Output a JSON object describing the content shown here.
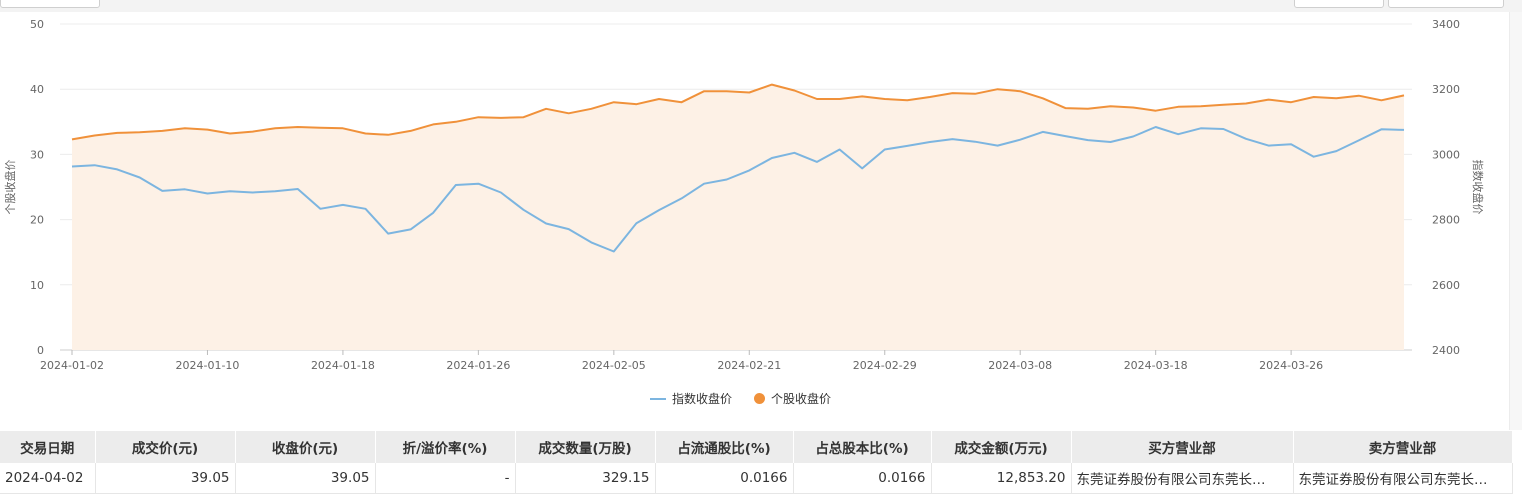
{
  "chart_data": {
    "type": "line",
    "x": [
      "2024-01-02",
      "2024-01-03",
      "2024-01-04",
      "2024-01-05",
      "2024-01-08",
      "2024-01-09",
      "2024-01-10",
      "2024-01-11",
      "2024-01-12",
      "2024-01-15",
      "2024-01-16",
      "2024-01-17",
      "2024-01-18",
      "2024-01-19",
      "2024-01-22",
      "2024-01-23",
      "2024-01-24",
      "2024-01-25",
      "2024-01-26",
      "2024-01-29",
      "2024-01-30",
      "2024-01-31",
      "2024-02-01",
      "2024-02-02",
      "2024-02-05",
      "2024-02-06",
      "2024-02-07",
      "2024-02-08",
      "2024-02-19",
      "2024-02-20",
      "2024-02-21",
      "2024-02-22",
      "2024-02-23",
      "2024-02-26",
      "2024-02-27",
      "2024-02-28",
      "2024-02-29",
      "2024-03-01",
      "2024-03-04",
      "2024-03-05",
      "2024-03-06",
      "2024-03-07",
      "2024-03-08",
      "2024-03-11",
      "2024-03-12",
      "2024-03-13",
      "2024-03-14",
      "2024-03-15",
      "2024-03-18",
      "2024-03-19",
      "2024-03-20",
      "2024-03-21",
      "2024-03-22",
      "2024-03-25",
      "2024-03-26",
      "2024-03-27",
      "2024-03-28",
      "2024-03-29",
      "2024-04-01",
      "2024-04-02"
    ],
    "x_ticks": [
      "2024-01-02",
      "2024-01-10",
      "2024-01-18",
      "2024-01-26",
      "2024-02-05",
      "2024-02-21",
      "2024-02-29",
      "2024-03-08",
      "2024-03-18",
      "2024-03-26"
    ],
    "y_left": {
      "label": "个股收盘价",
      "range": [
        0,
        50
      ],
      "ticks": [
        0,
        10,
        20,
        30,
        40,
        50
      ]
    },
    "y_right": {
      "label": "指数收盘价",
      "range": [
        2400,
        3400
      ],
      "ticks": [
        2400,
        2600,
        2800,
        3000,
        3200,
        3400
      ]
    },
    "series": [
      {
        "name": "指数收盘价",
        "axis": "right",
        "color": "#7cb5e0",
        "values": [
          2963,
          2967,
          2954,
          2929,
          2888,
          2893,
          2880,
          2887,
          2883,
          2887,
          2894,
          2833,
          2845,
          2833,
          2757,
          2770,
          2821,
          2906,
          2910,
          2883,
          2830,
          2788,
          2771,
          2730,
          2702,
          2789,
          2829,
          2865,
          2910,
          2923,
          2951,
          2989,
          3005,
          2977,
          3015,
          2957,
          3015,
          3026,
          3038,
          3047,
          3039,
          3027,
          3045,
          3069,
          3056,
          3044,
          3038,
          3055,
          3084,
          3062,
          3080,
          3078,
          3048,
          3027,
          3031,
          2993,
          3010,
          3043,
          3077,
          3075
        ]
      },
      {
        "name": "个股收盘价",
        "axis": "left",
        "color": "#f0913a",
        "values": [
          32.3,
          32.9,
          33.3,
          33.4,
          33.6,
          34.0,
          33.8,
          33.2,
          33.5,
          34.0,
          34.2,
          34.1,
          34.0,
          33.2,
          33.0,
          33.6,
          34.6,
          35.0,
          35.7,
          35.6,
          35.7,
          37.0,
          36.3,
          37.0,
          38.0,
          37.7,
          38.5,
          38.0,
          39.7,
          39.7,
          39.5,
          40.7,
          39.8,
          38.5,
          38.5,
          38.9,
          38.5,
          38.3,
          38.8,
          39.4,
          39.3,
          40.0,
          39.7,
          38.6,
          37.1,
          37.0,
          37.4,
          37.2,
          36.7,
          37.3,
          37.4,
          37.6,
          37.8,
          38.4,
          38.0,
          38.8,
          38.6,
          39.0,
          38.3,
          39.05
        ]
      }
    ],
    "grid": true,
    "legend": "bottom-center"
  },
  "table": {
    "headers": [
      "交易日期",
      "成交价(元)",
      "收盘价(元)",
      "折/溢价率(%)",
      "成交数量(万股)",
      "占流通股比(%)",
      "占总股本比(%)",
      "成交金额(万元)",
      "买方营业部",
      "卖方营业部"
    ],
    "rows": [
      [
        "2024-04-02",
        "39.05",
        "39.05",
        "-",
        "329.15",
        "0.0166",
        "0.0166",
        "12,853.20",
        "东莞证券股份有限公司东莞长…",
        "东莞证券股份有限公司东莞长…"
      ]
    ]
  }
}
